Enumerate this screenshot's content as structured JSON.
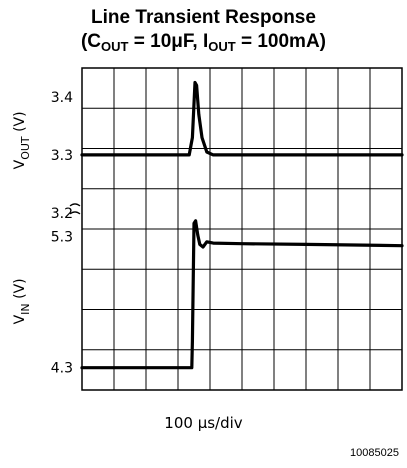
{
  "chart_data": {
    "type": "line",
    "title": {
      "line1": "Line Transient Response",
      "line2_parts": [
        {
          "text": "(C",
          "sub": false
        },
        {
          "text": "OUT",
          "sub": true
        },
        {
          "text": " = 10μF, I",
          "sub": false
        },
        {
          "text": "OUT",
          "sub": true
        },
        {
          "text": " = 100mA)",
          "sub": false
        }
      ]
    },
    "xlabel": "100 μs/div",
    "grid": true,
    "x_divisions": 10,
    "y_divisions": 8,
    "figure_id": "10085025",
    "panels": [
      {
        "name": "vout",
        "ylabel_main": "V",
        "ylabel_sub": "OUT",
        "ylabel_unit": " (V)",
        "ticks": [
          {
            "value": 3.4,
            "label": "3.4"
          },
          {
            "value": 3.3,
            "label": "3.3"
          },
          {
            "value": 3.2,
            "label": "3.2"
          }
        ],
        "ylim": [
          3.2,
          3.45
        ],
        "points": [
          [
            0,
            3.3
          ],
          [
            3.27,
            3.3
          ],
          [
            3.35,
            3.3
          ],
          [
            3.45,
            3.33
          ],
          [
            3.53,
            3.425
          ],
          [
            3.58,
            3.42
          ],
          [
            3.65,
            3.37
          ],
          [
            3.75,
            3.33
          ],
          [
            3.9,
            3.305
          ],
          [
            4.1,
            3.3
          ],
          [
            10,
            3.3
          ]
        ]
      },
      {
        "name": "vin",
        "ylabel_main": "V",
        "ylabel_sub": "IN",
        "ylabel_unit": " (V)",
        "ticks": [
          {
            "value": 5.3,
            "label": "5.3"
          },
          {
            "value": 4.3,
            "label": "4.3"
          }
        ],
        "ylim": [
          4.13,
          5.48
        ],
        "points": [
          [
            0,
            4.3
          ],
          [
            3.43,
            4.3
          ],
          [
            3.45,
            4.5
          ],
          [
            3.5,
            5.4
          ],
          [
            3.55,
            5.42
          ],
          [
            3.62,
            5.31
          ],
          [
            3.68,
            5.24
          ],
          [
            3.78,
            5.22
          ],
          [
            3.9,
            5.26
          ],
          [
            4.1,
            5.25
          ],
          [
            5,
            5.245
          ],
          [
            7,
            5.24
          ],
          [
            8.5,
            5.235
          ],
          [
            10,
            5.23
          ]
        ]
      }
    ]
  }
}
